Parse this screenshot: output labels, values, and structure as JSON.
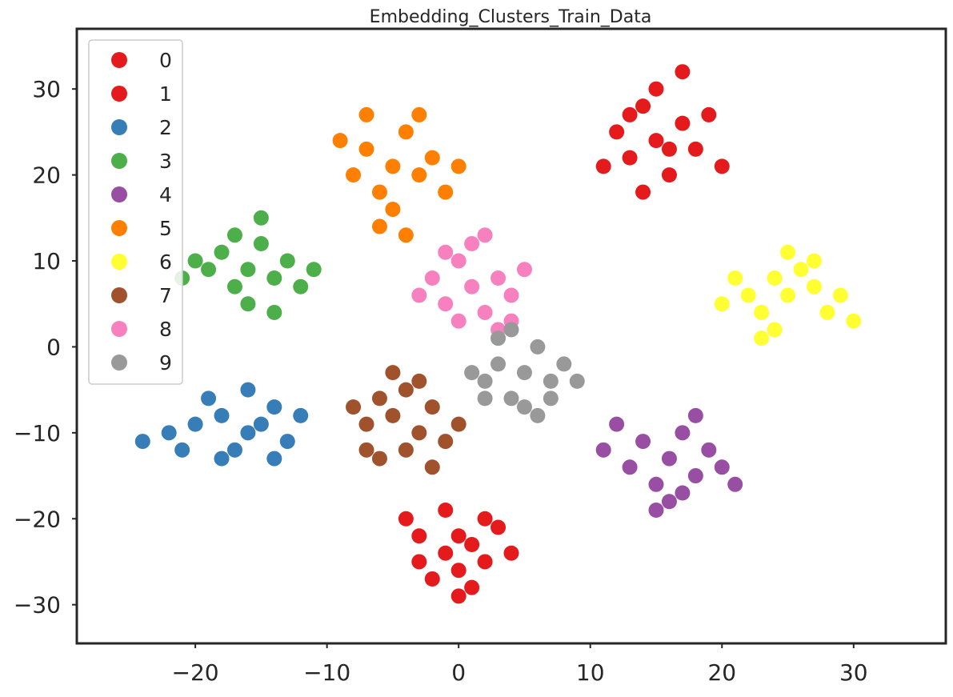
{
  "chart_data": {
    "type": "scatter",
    "title": "Embedding_Clusters_Train_Data",
    "xlabel": "",
    "ylabel": "",
    "xlim": [
      -29,
      37
    ],
    "ylim": [
      -34.5,
      37
    ],
    "x_ticks": [
      -20,
      -10,
      0,
      10,
      20,
      30
    ],
    "y_ticks": [
      -30,
      -20,
      -10,
      0,
      10,
      20,
      30
    ],
    "x_tick_labels": [
      "−20",
      "−10",
      "0",
      "10",
      "20",
      "30"
    ],
    "y_tick_labels": [
      "−30",
      "−20",
      "−10",
      "0",
      "10",
      "20",
      "30"
    ],
    "grid": false,
    "legend_position": "upper-left",
    "series": [
      {
        "name": "0",
        "color": "#e41a1c",
        "points": [
          [
            -3,
            -22
          ],
          [
            -1,
            -24
          ],
          [
            0,
            -26
          ],
          [
            1,
            -23
          ],
          [
            2,
            -25
          ],
          [
            -2,
            -27
          ],
          [
            0,
            -29
          ],
          [
            3,
            -21
          ],
          [
            -4,
            -20
          ],
          [
            1,
            -28
          ],
          [
            4,
            -24
          ],
          [
            -1,
            -19
          ],
          [
            2,
            -20
          ],
          [
            -3,
            -25
          ],
          [
            0,
            -22
          ]
        ]
      },
      {
        "name": "1",
        "color": "#e41a1c",
        "points": [
          [
            15,
            24
          ],
          [
            13,
            22
          ],
          [
            17,
            26
          ],
          [
            14,
            28
          ],
          [
            16,
            20
          ],
          [
            12,
            25
          ],
          [
            18,
            23
          ],
          [
            15,
            30
          ],
          [
            11,
            21
          ],
          [
            19,
            27
          ],
          [
            14,
            18
          ],
          [
            17,
            32
          ],
          [
            13,
            27
          ],
          [
            16,
            23
          ],
          [
            20,
            21
          ]
        ]
      },
      {
        "name": "2",
        "color": "#377eb8",
        "points": [
          [
            -18,
            -8
          ],
          [
            -16,
            -10
          ],
          [
            -20,
            -9
          ],
          [
            -14,
            -7
          ],
          [
            -17,
            -12
          ],
          [
            -19,
            -6
          ],
          [
            -15,
            -9
          ],
          [
            -22,
            -10
          ],
          [
            -13,
            -11
          ],
          [
            -18,
            -13
          ],
          [
            -16,
            -5
          ],
          [
            -21,
            -12
          ],
          [
            -14,
            -13
          ],
          [
            -24,
            -11
          ],
          [
            -12,
            -8
          ]
        ]
      },
      {
        "name": "3",
        "color": "#4daf4a",
        "points": [
          [
            -16,
            9
          ],
          [
            -18,
            11
          ],
          [
            -14,
            8
          ],
          [
            -17,
            7
          ],
          [
            -15,
            12
          ],
          [
            -19,
            9
          ],
          [
            -13,
            10
          ],
          [
            -16,
            5
          ],
          [
            -20,
            10
          ],
          [
            -12,
            7
          ],
          [
            -17,
            13
          ],
          [
            -14,
            4
          ],
          [
            -21,
            8
          ],
          [
            -15,
            15
          ],
          [
            -11,
            9
          ]
        ]
      },
      {
        "name": "4",
        "color": "#984ea3",
        "points": [
          [
            16,
            -13
          ],
          [
            14,
            -11
          ],
          [
            18,
            -15
          ],
          [
            15,
            -16
          ],
          [
            17,
            -10
          ],
          [
            13,
            -14
          ],
          [
            19,
            -12
          ],
          [
            16,
            -18
          ],
          [
            12,
            -9
          ],
          [
            20,
            -14
          ],
          [
            15,
            -19
          ],
          [
            18,
            -8
          ],
          [
            11,
            -12
          ],
          [
            17,
            -17
          ],
          [
            21,
            -16
          ]
        ]
      },
      {
        "name": "5",
        "color": "#ff7f00",
        "points": [
          [
            -5,
            21
          ],
          [
            -7,
            23
          ],
          [
            -3,
            20
          ],
          [
            -6,
            18
          ],
          [
            -4,
            25
          ],
          [
            -8,
            20
          ],
          [
            -2,
            22
          ],
          [
            -5,
            16
          ],
          [
            -9,
            24
          ],
          [
            -3,
            27
          ],
          [
            -6,
            14
          ],
          [
            -1,
            18
          ],
          [
            -7,
            27
          ],
          [
            -4,
            13
          ],
          [
            0,
            21
          ]
        ]
      },
      {
        "name": "6",
        "color": "#ffff33",
        "points": [
          [
            25,
            6
          ],
          [
            23,
            4
          ],
          [
            27,
            7
          ],
          [
            24,
            2
          ],
          [
            26,
            9
          ],
          [
            22,
            6
          ],
          [
            28,
            4
          ],
          [
            25,
            11
          ],
          [
            21,
            8
          ],
          [
            29,
            6
          ],
          [
            23,
            1
          ],
          [
            27,
            10
          ],
          [
            20,
            5
          ],
          [
            30,
            3
          ],
          [
            24,
            8
          ]
        ]
      },
      {
        "name": "7",
        "color": "#a0522d",
        "points": [
          [
            -5,
            -8
          ],
          [
            -3,
            -10
          ],
          [
            -6,
            -6
          ],
          [
            -4,
            -12
          ],
          [
            -2,
            -7
          ],
          [
            -7,
            -9
          ],
          [
            -4,
            -5
          ],
          [
            -1,
            -11
          ],
          [
            -6,
            -13
          ],
          [
            -3,
            -4
          ],
          [
            -8,
            -7
          ],
          [
            -2,
            -14
          ],
          [
            -5,
            -3
          ],
          [
            0,
            -9
          ],
          [
            -7,
            -12
          ]
        ]
      },
      {
        "name": "8",
        "color": "#f781bf",
        "points": [
          [
            1,
            7
          ],
          [
            -1,
            5
          ],
          [
            3,
            8
          ],
          [
            0,
            10
          ],
          [
            2,
            4
          ],
          [
            -2,
            8
          ],
          [
            4,
            6
          ],
          [
            1,
            12
          ],
          [
            -3,
            6
          ],
          [
            3,
            2
          ],
          [
            0,
            3
          ],
          [
            5,
            9
          ],
          [
            -1,
            11
          ],
          [
            2,
            13
          ],
          [
            4,
            3
          ]
        ]
      },
      {
        "name": "9",
        "color": "#999999",
        "points": [
          [
            5,
            -3
          ],
          [
            3,
            -2
          ],
          [
            7,
            -4
          ],
          [
            4,
            -6
          ],
          [
            6,
            0
          ],
          [
            2,
            -4
          ],
          [
            8,
            -2
          ],
          [
            5,
            -7
          ],
          [
            3,
            1
          ],
          [
            7,
            -6
          ],
          [
            1,
            -3
          ],
          [
            9,
            -4
          ],
          [
            4,
            2
          ],
          [
            6,
            -8
          ],
          [
            2,
            -6
          ]
        ]
      }
    ]
  }
}
